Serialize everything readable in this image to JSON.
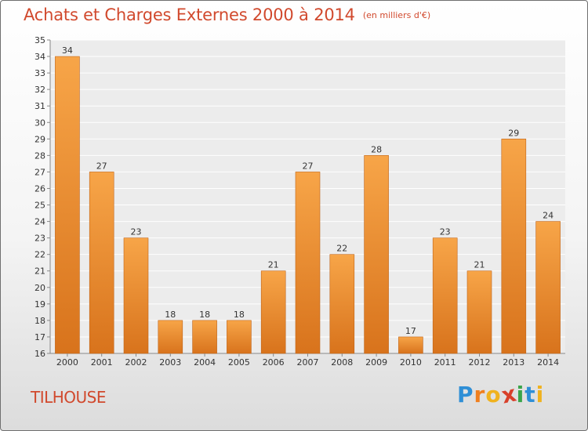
{
  "chart_data": {
    "type": "bar",
    "title": "Achats et Charges Externes 2000 à 2014",
    "unit_label": "(en milliers d'€)",
    "categories": [
      "2000",
      "2001",
      "2002",
      "2003",
      "2004",
      "2005",
      "2006",
      "2007",
      "2008",
      "2009",
      "2010",
      "2011",
      "2012",
      "2013",
      "2014"
    ],
    "values": [
      34,
      27,
      23,
      18,
      18,
      18,
      21,
      27,
      22,
      28,
      17,
      23,
      21,
      29,
      24
    ],
    "ylim": [
      16,
      35
    ],
    "yticks": [
      16,
      17,
      18,
      19,
      20,
      21,
      22,
      23,
      24,
      25,
      26,
      27,
      28,
      29,
      30,
      31,
      32,
      33,
      34,
      35
    ],
    "grid": true,
    "bar_color": "#f0922f"
  },
  "commune": "TILHOUSE",
  "logo": {
    "text": "Proxiti",
    "letters": [
      {
        "ch": "P",
        "color": "#2f8fd6"
      },
      {
        "ch": "r",
        "color": "#f07f1e"
      },
      {
        "ch": "o",
        "color": "#f0b21e"
      },
      {
        "ch": "x",
        "color": "#d8402a"
      },
      {
        "ch": "i",
        "color": "#3aa54a"
      },
      {
        "ch": "t",
        "color": "#2f8fd6"
      },
      {
        "ch": "i",
        "color": "#f0b21e"
      }
    ]
  }
}
